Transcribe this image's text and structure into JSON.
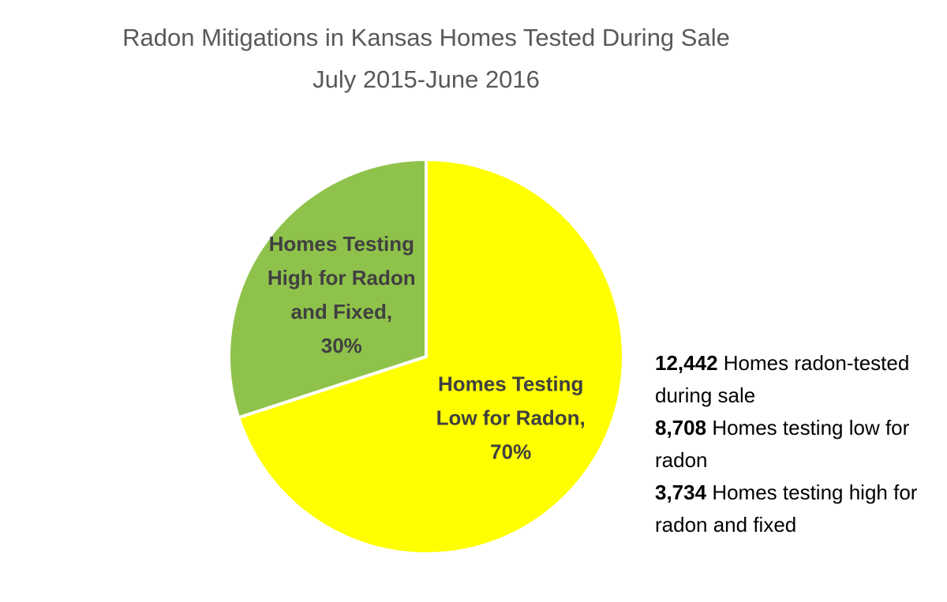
{
  "chart_data": {
    "type": "pie",
    "title": "Radon Mitigations in Kansas Homes Tested During Sale",
    "subtitle": "July 2015-June 2016",
    "categories": [
      "Homes Testing Low for Radon,",
      "Homes Testing High for Radon and Fixed,"
    ],
    "values": [
      70,
      30
    ],
    "value_labels": [
      "70%",
      "30%"
    ],
    "colors": [
      "#ffff00",
      "#8fc24b"
    ],
    "annotations": [
      {
        "number": "12,442",
        "text": "Homes radon-tested during sale"
      },
      {
        "number": "8,708",
        "text": "Homes testing low for radon"
      },
      {
        "number": "3,734",
        "text": "Homes testing high for radon and fixed"
      }
    ]
  }
}
